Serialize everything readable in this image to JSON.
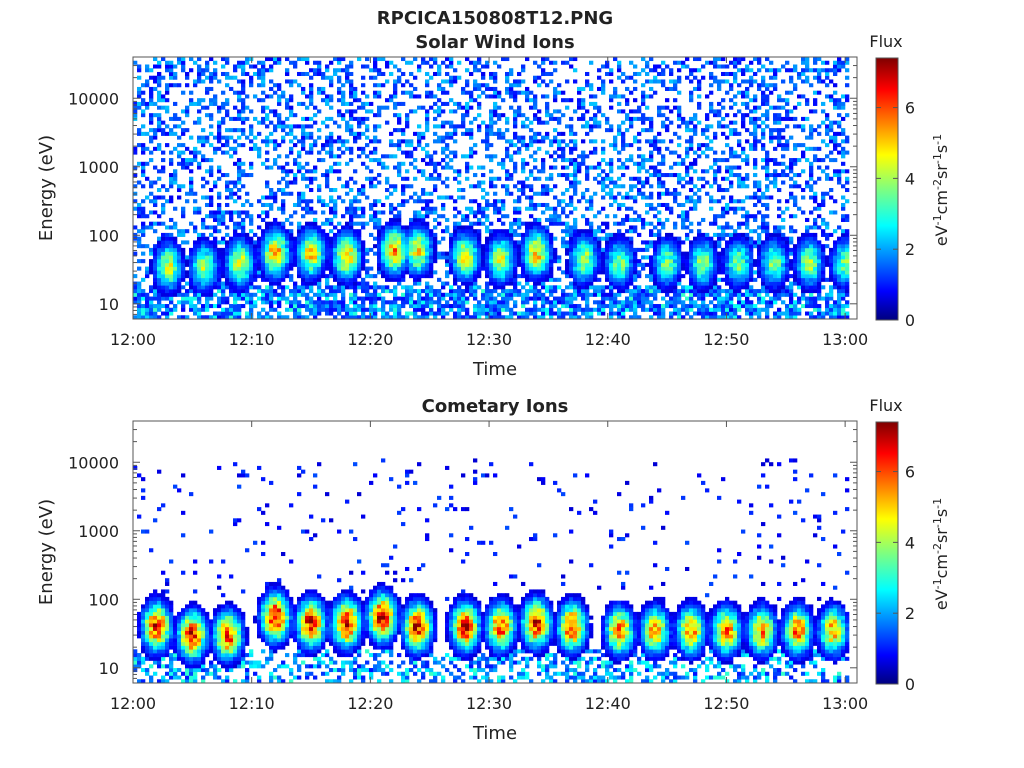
{
  "figure": {
    "title": "RPCICA150808T12.PNG"
  },
  "colormap": [
    "#00007f",
    "#0000ff",
    "#007fff",
    "#00ffff",
    "#7fff7f",
    "#ffff00",
    "#ff7f00",
    "#ff0000",
    "#7f0000"
  ],
  "chart_data": [
    {
      "type": "heatmap",
      "title": "Solar Wind Ions",
      "xlabel": "Time",
      "ylabel": "Energy (eV)",
      "x_ticks": [
        "12:00",
        "12:10",
        "12:20",
        "12:30",
        "12:40",
        "12:50",
        "13:00"
      ],
      "y_ticks": [
        "10",
        "100",
        "1000",
        "10000"
      ],
      "y_scale": "log",
      "ylim": [
        6,
        40000
      ],
      "colorbar": {
        "title": "Flux",
        "label": "eV-1cm-2sr-1s-1",
        "ticks": [
          "0",
          "2",
          "4",
          "6"
        ],
        "range": [
          0,
          7.4
        ]
      },
      "description_of_data": "sparse background flux 1-3 across all energies; enhanced bursts up to ~5.5 near 30-100 eV",
      "bursts": [
        {
          "time": "12:03",
          "peak_energy_eV": 35,
          "peak_flux": 4.5
        },
        {
          "time": "12:06",
          "peak_energy_eV": 35,
          "peak_flux": 4.2
        },
        {
          "time": "12:09",
          "peak_energy_eV": 40,
          "peak_flux": 4.6
        },
        {
          "time": "12:12",
          "peak_energy_eV": 55,
          "peak_flux": 5.6
        },
        {
          "time": "12:15",
          "peak_energy_eV": 55,
          "peak_flux": 5.2
        },
        {
          "time": "12:18",
          "peak_energy_eV": 50,
          "peak_flux": 5.3
        },
        {
          "time": "12:22",
          "peak_energy_eV": 60,
          "peak_flux": 5.5
        },
        {
          "time": "12:24",
          "peak_energy_eV": 60,
          "peak_flux": 5.0
        },
        {
          "time": "12:28",
          "peak_energy_eV": 50,
          "peak_flux": 4.8
        },
        {
          "time": "12:31",
          "peak_energy_eV": 45,
          "peak_flux": 4.5
        },
        {
          "time": "12:34",
          "peak_energy_eV": 55,
          "peak_flux": 5.2
        },
        {
          "time": "12:38",
          "peak_energy_eV": 45,
          "peak_flux": 4.3
        },
        {
          "time": "12:41",
          "peak_energy_eV": 40,
          "peak_flux": 4.0
        },
        {
          "time": "12:45",
          "peak_energy_eV": 40,
          "peak_flux": 3.9
        },
        {
          "time": "12:48",
          "peak_energy_eV": 40,
          "peak_flux": 4.0
        },
        {
          "time": "12:51",
          "peak_energy_eV": 40,
          "peak_flux": 3.9
        },
        {
          "time": "12:54",
          "peak_energy_eV": 40,
          "peak_flux": 4.0
        },
        {
          "time": "12:57",
          "peak_energy_eV": 40,
          "peak_flux": 4.2
        },
        {
          "time": "13:00",
          "peak_energy_eV": 40,
          "peak_flux": 3.8
        }
      ],
      "background": {
        "level": 1.6,
        "energy_range_eV": [
          6,
          40000
        ]
      }
    },
    {
      "type": "heatmap",
      "title": "Cometary Ions",
      "xlabel": "Time",
      "ylabel": "Energy (eV)",
      "x_ticks": [
        "12:00",
        "12:10",
        "12:20",
        "12:30",
        "12:40",
        "12:50",
        "13:00"
      ],
      "y_ticks": [
        "10",
        "100",
        "1000",
        "10000"
      ],
      "y_scale": "log",
      "ylim": [
        6,
        40000
      ],
      "colorbar": {
        "title": "Flux",
        "label": "eV-1cm-2sr-1s-1",
        "ticks": [
          "0",
          "2",
          "4",
          "6"
        ],
        "range": [
          0,
          7.4
        ]
      },
      "description_of_data": "periodic bursts peaking near 7 at 30-60 eV with sparse low-level flux at high energies",
      "bursts": [
        {
          "time": "12:02",
          "peak_energy_eV": 40,
          "peak_flux": 6.8
        },
        {
          "time": "12:05",
          "peak_energy_eV": 30,
          "peak_flux": 6.9
        },
        {
          "time": "12:08",
          "peak_energy_eV": 30,
          "peak_flux": 6.6
        },
        {
          "time": "12:12",
          "peak_energy_eV": 55,
          "peak_flux": 7.2
        },
        {
          "time": "12:15",
          "peak_energy_eV": 45,
          "peak_flux": 7.0
        },
        {
          "time": "12:18",
          "peak_energy_eV": 45,
          "peak_flux": 7.1
        },
        {
          "time": "12:21",
          "peak_energy_eV": 55,
          "peak_flux": 7.2
        },
        {
          "time": "12:24",
          "peak_energy_eV": 40,
          "peak_flux": 7.0
        },
        {
          "time": "12:28",
          "peak_energy_eV": 40,
          "peak_flux": 6.8
        },
        {
          "time": "12:31",
          "peak_energy_eV": 40,
          "peak_flux": 6.3
        },
        {
          "time": "12:34",
          "peak_energy_eV": 45,
          "peak_flux": 7.0
        },
        {
          "time": "12:37",
          "peak_energy_eV": 40,
          "peak_flux": 6.6
        },
        {
          "time": "12:41",
          "peak_energy_eV": 35,
          "peak_flux": 6.0
        },
        {
          "time": "12:44",
          "peak_energy_eV": 35,
          "peak_flux": 5.6
        },
        {
          "time": "12:47",
          "peak_energy_eV": 35,
          "peak_flux": 5.8
        },
        {
          "time": "12:50",
          "peak_energy_eV": 35,
          "peak_flux": 5.9
        },
        {
          "time": "12:53",
          "peak_energy_eV": 35,
          "peak_flux": 5.6
        },
        {
          "time": "12:56",
          "peak_energy_eV": 35,
          "peak_flux": 6.0
        },
        {
          "time": "12:59",
          "peak_energy_eV": 35,
          "peak_flux": 5.6
        }
      ],
      "background": {
        "level": 1.0,
        "energy_range_eV": [
          100,
          12000
        ]
      }
    }
  ]
}
